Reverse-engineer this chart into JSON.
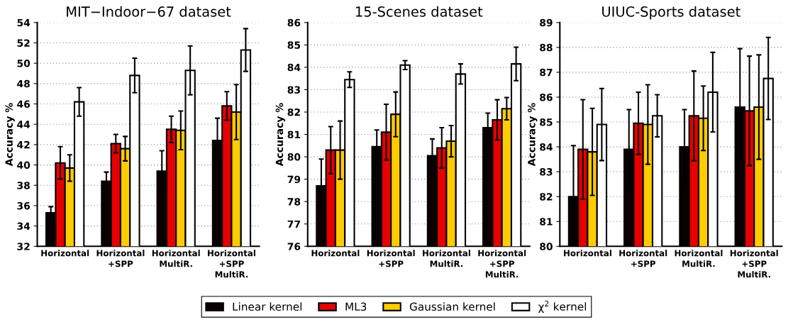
{
  "chart_data": [
    {
      "type": "bar",
      "title": "MIT−Indoor−67 dataset",
      "ylabel": "Accuracy %",
      "categories": [
        "Horizontal",
        "Horizontal\n+SPP",
        "Horizontal\nMultiR.",
        "Horizontal\n+SPP\nMultiR."
      ],
      "ylim": [
        32,
        54
      ],
      "yticks": [
        32,
        34,
        36,
        38,
        40,
        42,
        44,
        46,
        48,
        50,
        52,
        54
      ],
      "grid": "y",
      "legend": "bottom",
      "series": [
        {
          "name": "Linear kernel",
          "color": "#0a0000",
          "values": [
            35.3,
            38.4,
            39.4,
            42.4
          ],
          "errors": [
            0.6,
            0.9,
            2.0,
            2.2
          ]
        },
        {
          "name": "ML3",
          "color": "#e60000",
          "values": [
            40.2,
            42.1,
            43.5,
            45.8
          ],
          "errors": [
            1.6,
            0.9,
            1.3,
            1.4
          ]
        },
        {
          "name": "Gaussian kernel",
          "color": "#ffcc00",
          "values": [
            39.7,
            41.6,
            43.4,
            45.2
          ],
          "errors": [
            1.3,
            1.2,
            1.9,
            2.7
          ]
        },
        {
          "name": "χ$^{2}$ kernel",
          "color": "#ffffff",
          "values": [
            46.2,
            48.8,
            49.3,
            51.3
          ],
          "errors": [
            1.4,
            1.7,
            2.4,
            2.1
          ]
        }
      ]
    },
    {
      "type": "bar",
      "title": "15-Scenes dataset",
      "ylabel": "Accuracy %",
      "categories": [
        "Horizontal",
        "Horizontal\n+SPP",
        "Horizontal\nMultiR.",
        "Horizontal\n+SPP\nMultiR."
      ],
      "ylim": [
        76,
        86
      ],
      "yticks": [
        76,
        77,
        78,
        79,
        80,
        81,
        82,
        83,
        84,
        85,
        86
      ],
      "grid": "y",
      "series": [
        {
          "color": "#0a0000",
          "values": [
            78.7,
            80.45,
            80.05,
            81.3
          ],
          "errors": [
            1.2,
            0.75,
            0.75,
            0.65
          ]
        },
        {
          "color": "#e60000",
          "values": [
            80.3,
            81.1,
            80.4,
            81.65
          ],
          "errors": [
            1.05,
            1.25,
            0.9,
            0.9
          ]
        },
        {
          "color": "#ffcc00",
          "values": [
            80.3,
            81.9,
            80.7,
            82.15
          ],
          "errors": [
            1.3,
            1.0,
            0.7,
            0.5
          ]
        },
        {
          "color": "#ffffff",
          "values": [
            83.45,
            84.1,
            83.7,
            84.15
          ],
          "errors": [
            0.35,
            0.2,
            0.45,
            0.75
          ]
        }
      ]
    },
    {
      "type": "bar",
      "title": "UIUC-Sports dataset",
      "ylabel": "Accuracy %",
      "categories": [
        "Horizontal",
        "Horizontal\n+SPP",
        "Horizontal\nMultiR.",
        "Horizontal\n+SPP\nMultiR."
      ],
      "ylim": [
        80,
        89
      ],
      "yticks": [
        80,
        81,
        82,
        83,
        84,
        85,
        86,
        87,
        88,
        89
      ],
      "grid": "y",
      "series": [
        {
          "color": "#0a0000",
          "values": [
            82.0,
            83.9,
            84.0,
            85.6
          ],
          "errors": [
            2.05,
            1.6,
            1.5,
            2.35
          ]
        },
        {
          "color": "#e60000",
          "values": [
            83.9,
            84.95,
            85.25,
            85.45
          ],
          "errors": [
            2.0,
            1.25,
            1.8,
            2.2
          ]
        },
        {
          "color": "#ffcc00",
          "values": [
            83.8,
            84.9,
            85.15,
            85.6
          ],
          "errors": [
            1.75,
            1.6,
            1.3,
            2.1
          ]
        },
        {
          "color": "#ffffff",
          "values": [
            84.9,
            85.25,
            86.2,
            86.75
          ],
          "errors": [
            1.45,
            0.85,
            1.6,
            1.65
          ]
        }
      ]
    }
  ]
}
